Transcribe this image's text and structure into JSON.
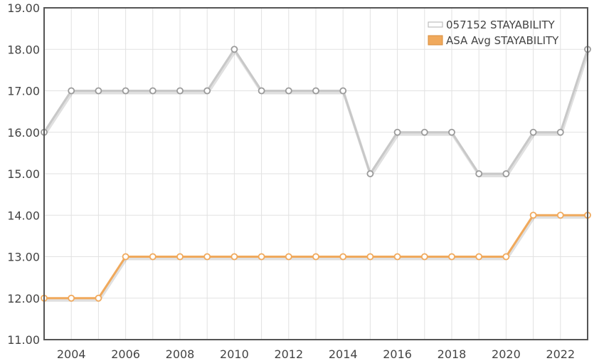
{
  "chart_data": {
    "type": "line",
    "title": "",
    "xlabel": "",
    "ylabel": "",
    "x": [
      2003,
      2004,
      2005,
      2006,
      2007,
      2008,
      2009,
      2010,
      2011,
      2012,
      2013,
      2014,
      2015,
      2016,
      2017,
      2018,
      2019,
      2020,
      2021,
      2022,
      2023
    ],
    "xlim": [
      2003,
      2023
    ],
    "ylim": [
      11,
      19
    ],
    "x_tick_labels": [
      "2004",
      "2006",
      "2008",
      "2010",
      "2012",
      "2014",
      "2016",
      "2018",
      "2020",
      "2022"
    ],
    "y_tick_labels": [
      "11.00",
      "12.00",
      "13.00",
      "14.00",
      "15.00",
      "16.00",
      "17.00",
      "18.00",
      "19.00"
    ],
    "grid": true,
    "legend_position": "top-right",
    "series": [
      {
        "name": "057152 STAYABILITY",
        "color": "#c8c8c8",
        "values": [
          16,
          17,
          17,
          17,
          17,
          17,
          17,
          18,
          17,
          17,
          17,
          17,
          15,
          16,
          16,
          16,
          15,
          15,
          16,
          16,
          18
        ]
      },
      {
        "name": "ASA Avg STAYABILITY",
        "color": "#f0a95c",
        "values": [
          12,
          12,
          12,
          13,
          13,
          13,
          13,
          13,
          13,
          13,
          13,
          13,
          13,
          13,
          13,
          13,
          13,
          13,
          14,
          14,
          14
        ]
      }
    ]
  }
}
